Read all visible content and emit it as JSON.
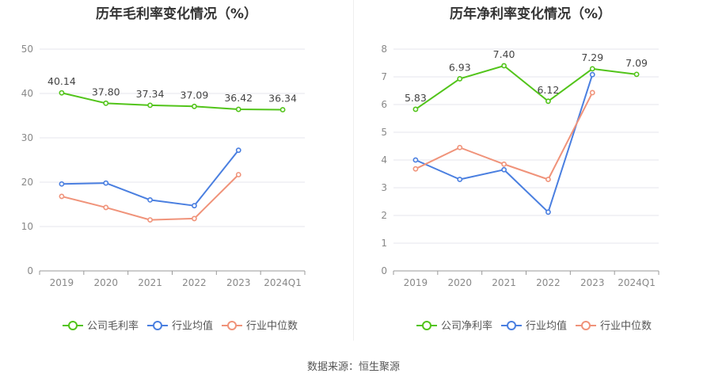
{
  "footer": {
    "source": "数据来源：恒生聚源"
  },
  "chart_data": [
    {
      "type": "line",
      "title": "历年毛利率变化情况（%）",
      "categories": [
        "2019",
        "2020",
        "2021",
        "2022",
        "2023",
        "2024Q1"
      ],
      "ylim": [
        0,
        50
      ],
      "yticks": [
        0,
        10,
        20,
        30,
        40,
        50
      ],
      "grid": true,
      "legend_position": "bottom",
      "series": [
        {
          "name": "公司毛利率",
          "color": "#52c41a",
          "labels": true,
          "values": [
            40.14,
            37.8,
            37.34,
            37.09,
            36.42,
            36.34
          ]
        },
        {
          "name": "行业均值",
          "color": "#4a7fe0",
          "labels": false,
          "values": [
            19.6,
            19.8,
            16.0,
            14.7,
            27.2,
            null
          ]
        },
        {
          "name": "行业中位数",
          "color": "#f0937a",
          "labels": false,
          "values": [
            16.8,
            14.3,
            11.5,
            11.8,
            21.7,
            null
          ]
        }
      ]
    },
    {
      "type": "line",
      "title": "历年净利率变化情况（%）",
      "categories": [
        "2019",
        "2020",
        "2021",
        "2022",
        "2023",
        "2024Q1"
      ],
      "ylim": [
        0,
        8
      ],
      "yticks": [
        0,
        1,
        2,
        3,
        4,
        5,
        6,
        7,
        8
      ],
      "grid": true,
      "legend_position": "bottom",
      "series": [
        {
          "name": "公司净利率",
          "color": "#52c41a",
          "labels": true,
          "values": [
            5.83,
            6.93,
            7.4,
            6.12,
            7.29,
            7.09
          ]
        },
        {
          "name": "行业均值",
          "color": "#4a7fe0",
          "labels": false,
          "values": [
            4.0,
            3.3,
            3.65,
            2.12,
            7.08,
            null
          ]
        },
        {
          "name": "行业中位数",
          "color": "#f0937a",
          "labels": false,
          "values": [
            3.68,
            4.45,
            3.85,
            3.3,
            6.43,
            null
          ]
        }
      ]
    }
  ]
}
